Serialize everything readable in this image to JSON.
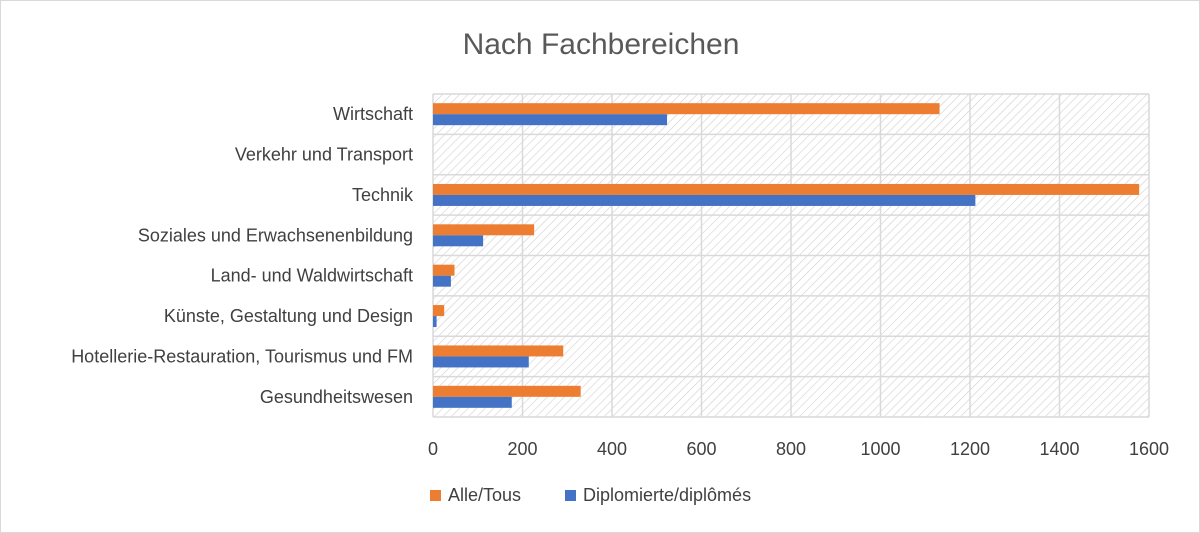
{
  "chart_data": {
    "type": "bar",
    "orientation": "horizontal",
    "title": "Nach Fachbereichen",
    "categories": [
      "Wirtschaft",
      "Verkehr und Transport",
      "Technik",
      "Soziales und Erwachsenenbildung",
      "Land- und Waldwirtschaft",
      "Künste, Gestaltung und Design",
      "Hotellerie-Restauration, Tourismus und FM",
      "Gesundheitswesen"
    ],
    "series": [
      {
        "name": "Alle/Tous",
        "color": "#ED7D31",
        "values": [
          1132,
          0,
          1578,
          226,
          48,
          25,
          291,
          330
        ]
      },
      {
        "name": "Diplomierte/diplômés",
        "color": "#4472C4",
        "values": [
          523,
          0,
          1212,
          112,
          40,
          8,
          214,
          176
        ]
      }
    ],
    "xlim": [
      0,
      1600
    ],
    "xticks": [
      "0",
      "200",
      "400",
      "600",
      "800",
      "1000",
      "1200",
      "1400",
      "1600"
    ],
    "grid": true,
    "legend_position": "bottom"
  }
}
